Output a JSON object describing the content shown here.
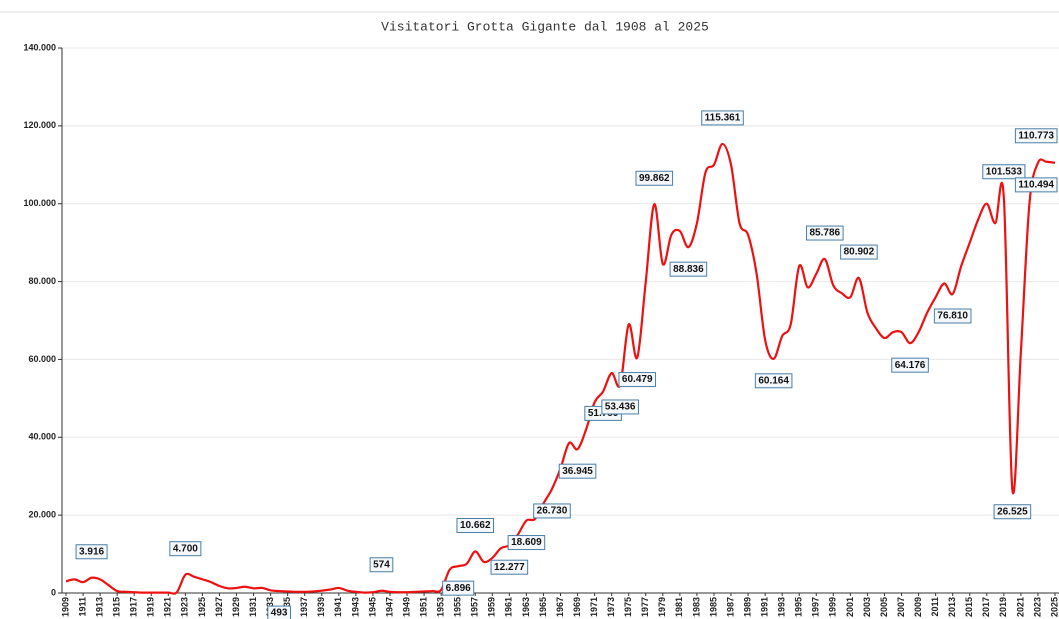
{
  "chart_data": {
    "type": "line",
    "title": "Visitatori Grotta Gigante dal 1908 al 2025",
    "x": [
      1909,
      1910,
      1911,
      1912,
      1913,
      1914,
      1915,
      1916,
      1917,
      1918,
      1919,
      1920,
      1921,
      1922,
      1923,
      1924,
      1925,
      1926,
      1927,
      1928,
      1929,
      1930,
      1931,
      1932,
      1933,
      1934,
      1935,
      1936,
      1937,
      1938,
      1939,
      1940,
      1941,
      1942,
      1943,
      1944,
      1945,
      1946,
      1947,
      1948,
      1949,
      1950,
      1951,
      1952,
      1953,
      1954,
      1955,
      1956,
      1957,
      1958,
      1959,
      1960,
      1961,
      1962,
      1963,
      1964,
      1965,
      1966,
      1967,
      1968,
      1969,
      1970,
      1971,
      1972,
      1973,
      1974,
      1975,
      1976,
      1977,
      1978,
      1979,
      1980,
      1981,
      1982,
      1983,
      1984,
      1985,
      1986,
      1987,
      1988,
      1989,
      1990,
      1991,
      1992,
      1993,
      1994,
      1995,
      1996,
      1997,
      1998,
      1999,
      2000,
      2001,
      2002,
      2003,
      2004,
      2005,
      2006,
      2007,
      2008,
      2009,
      2010,
      2011,
      2012,
      2013,
      2014,
      2015,
      2016,
      2017,
      2018,
      2019,
      2020,
      2021,
      2022,
      2023,
      2024,
      2025
    ],
    "series": [
      {
        "color": "#ee1111",
        "values": [
          3000,
          3500,
          2800,
          3916,
          3500,
          2000,
          500,
          300,
          200,
          100,
          100,
          100,
          100,
          200,
          4700,
          4200,
          3500,
          2800,
          1800,
          1200,
          1300,
          1600,
          1200,
          1300,
          700,
          493,
          400,
          300,
          300,
          400,
          600,
          900,
          1300,
          600,
          300,
          100,
          200,
          574,
          300,
          200,
          200,
          300,
          400,
          500,
          800,
          6000,
          6896,
          7500,
          10662,
          8000,
          9000,
          11500,
          12277,
          15000,
          18609,
          19000,
          23000,
          26730,
          32000,
          38500,
          36945,
          42000,
          49000,
          51789,
          56500,
          53436,
          69000,
          60479,
          80000,
          99862,
          84500,
          92000,
          93000,
          88836,
          95000,
          108000,
          110000,
          115361,
          110000,
          95000,
          92000,
          82000,
          65000,
          60164,
          66000,
          69000,
          84000,
          78500,
          82000,
          85786,
          79000,
          77000,
          76000,
          80902,
          72000,
          68000,
          65500,
          67000,
          67000,
          64176,
          67000,
          72000,
          76000,
          79500,
          76810,
          84000,
          90000,
          96000,
          100000,
          95000,
          101533,
          26525,
          62000,
          100000,
          110494,
          110773,
          110500
        ],
        "value_labels": [
          null,
          null,
          null,
          "3.916",
          null,
          null,
          null,
          null,
          null,
          null,
          null,
          null,
          null,
          null,
          "4.700",
          null,
          null,
          null,
          null,
          null,
          null,
          null,
          null,
          null,
          null,
          "493",
          null,
          null,
          null,
          null,
          null,
          null,
          null,
          null,
          null,
          null,
          null,
          "574",
          null,
          null,
          null,
          null,
          null,
          null,
          null,
          null,
          "6.896",
          null,
          "10.662",
          null,
          null,
          null,
          "12.277",
          null,
          "18.609",
          null,
          null,
          "26.730",
          null,
          null,
          "36.945",
          null,
          null,
          "51.789",
          null,
          "53.436",
          null,
          "60.479",
          null,
          "99.862",
          null,
          null,
          null,
          "88.836",
          null,
          null,
          null,
          "115.361",
          null,
          null,
          null,
          null,
          null,
          "60.164",
          null,
          null,
          null,
          null,
          null,
          "85.786",
          null,
          null,
          null,
          "80.902",
          null,
          null,
          null,
          null,
          null,
          "64.176",
          null,
          null,
          null,
          null,
          "76.810",
          null,
          null,
          null,
          null,
          null,
          "101.533",
          "26.525",
          null,
          null,
          "110.494",
          "110.773",
          null
        ]
      }
    ],
    "xlim": [
      1909,
      2025
    ],
    "xticks": [
      1909,
      1911,
      1913,
      1915,
      1917,
      1919,
      1921,
      1923,
      1925,
      1927,
      1929,
      1931,
      1933,
      1935,
      1937,
      1939,
      1941,
      1943,
      1945,
      1947,
      1949,
      1951,
      1953,
      1955,
      1957,
      1959,
      1961,
      1963,
      1965,
      1967,
      1969,
      1971,
      1973,
      1975,
      1977,
      1979,
      1981,
      1983,
      1985,
      1987,
      1989,
      1991,
      1993,
      1995,
      1997,
      1999,
      2001,
      2003,
      2005,
      2007,
      2009,
      2011,
      2013,
      2015,
      2017,
      2019,
      2021,
      2023,
      2025
    ],
    "ylim": [
      0,
      140000
    ],
    "yticks": [
      0,
      {
        "value": 20000,
        "label": "20.000"
      },
      {
        "value": 40000,
        "label": "40.000"
      },
      {
        "value": 60000,
        "label": "60.000"
      },
      {
        "value": 80000,
        "label": "80.000"
      },
      {
        "value": 100000,
        "label": "100.000"
      },
      {
        "value": 120000,
        "label": "120.000"
      },
      {
        "value": 140000,
        "label": "140.000"
      }
    ],
    "grid": true
  }
}
